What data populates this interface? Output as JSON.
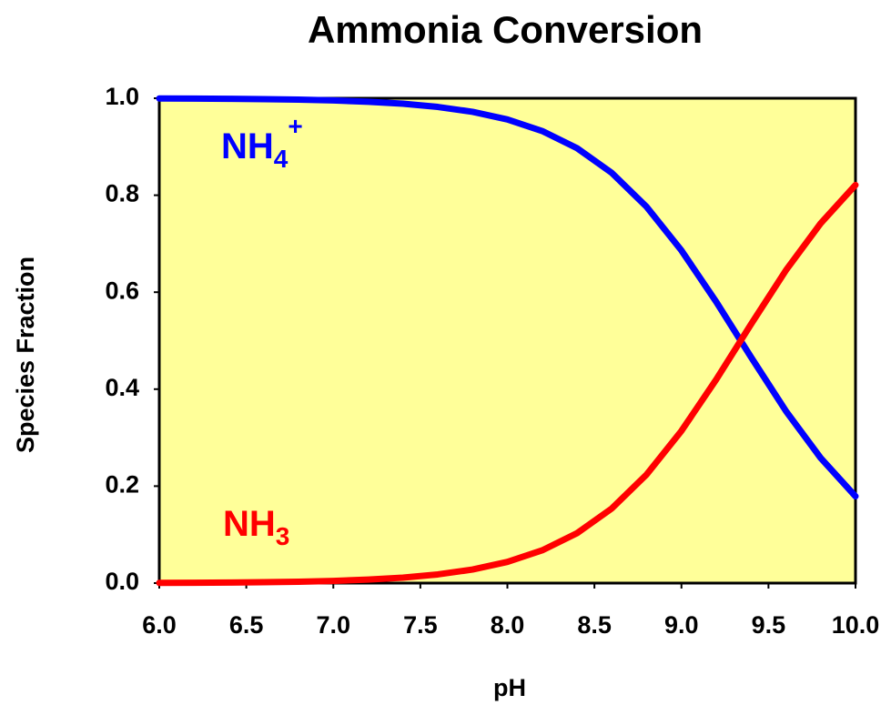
{
  "chart_data": {
    "type": "line",
    "title": "Ammonia Conversion",
    "x_label": "pH",
    "y_label": "Species Fraction",
    "x": [
      6.0,
      6.2,
      6.4,
      6.6,
      6.8,
      7.0,
      7.2,
      7.4,
      7.6,
      7.8,
      8.0,
      8.2,
      8.4,
      8.6,
      8.8,
      9.0,
      9.2,
      9.4,
      9.6,
      9.8,
      10.0
    ],
    "series": [
      {
        "name": "NH4+",
        "color": "#0000ff",
        "values": [
          0.9995,
          0.9993,
          0.9989,
          0.9982,
          0.9971,
          0.9955,
          0.9928,
          0.9887,
          0.9821,
          0.972,
          0.9563,
          0.9324,
          0.897,
          0.846,
          0.776,
          0.686,
          0.58,
          0.466,
          0.355,
          0.258,
          0.179
        ]
      },
      {
        "name": "NH3",
        "color": "#ff0000",
        "values": [
          0.0005,
          0.0007,
          0.0011,
          0.0018,
          0.0029,
          0.0045,
          0.0072,
          0.0113,
          0.0179,
          0.028,
          0.0437,
          0.0676,
          0.103,
          0.154,
          0.224,
          0.314,
          0.42,
          0.534,
          0.645,
          0.742,
          0.821
        ]
      }
    ],
    "annotations": [
      {
        "text": "NH",
        "sub": "4",
        "sup": "+",
        "color": "#0000ff"
      },
      {
        "text": "NH",
        "sub": "3",
        "color": "#ff0000"
      }
    ],
    "xlim": [
      6.0,
      10.0
    ],
    "ylim": [
      0,
      1
    ],
    "xticks": [
      {
        "value": 6,
        "label": "6.0"
      },
      6.5,
      {
        "value": 7,
        "label": "7.0"
      },
      7.5,
      {
        "value": 8,
        "label": "8.0"
      },
      8.5,
      {
        "value": 9,
        "label": "9.0"
      },
      9.5,
      {
        "value": 10,
        "label": "10.0"
      }
    ],
    "yticks": [
      {
        "value": 0,
        "label": "0.0"
      },
      0.2,
      0.4,
      0.6,
      0.8,
      {
        "value": 1,
        "label": "1.0"
      }
    ],
    "plot_background": "#ffff99",
    "grid": false
  }
}
